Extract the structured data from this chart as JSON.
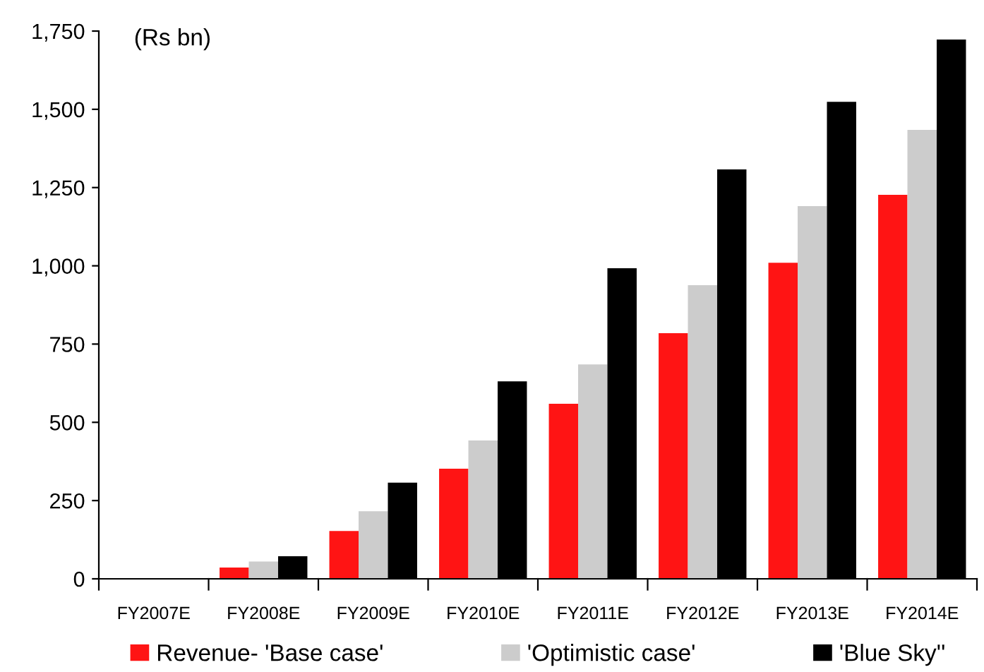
{
  "chart_data": {
    "type": "bar",
    "categories": [
      "FY2007E",
      "FY2008E",
      "FY2009E",
      "FY2010E",
      "FY2011E",
      "FY2012E",
      "FY2013E",
      "FY2014E"
    ],
    "series": [
      {
        "name": "Revenue- 'Base case'",
        "color": "#ff1414",
        "values": [
          0,
          36,
          153,
          352,
          559,
          785,
          1010,
          1227
        ]
      },
      {
        "name": "'Optimistic case'",
        "color": "#cccccc",
        "values": [
          0,
          55,
          216,
          442,
          685,
          938,
          1191,
          1434
        ]
      },
      {
        "name": "'Blue Sky''",
        "color": "#000000",
        "values": [
          0,
          72,
          307,
          631,
          992,
          1308,
          1524,
          1723
        ]
      }
    ],
    "ylim": [
      0,
      1750
    ],
    "yticks": [
      {
        "value": 0,
        "label": "0"
      },
      {
        "value": 250,
        "label": "250"
      },
      {
        "value": 500,
        "label": "500"
      },
      {
        "value": 750,
        "label": "750"
      },
      {
        "value": 1000,
        "label": "1,000"
      },
      {
        "value": 1250,
        "label": "1,250"
      },
      {
        "value": 1500,
        "label": "1,500"
      },
      {
        "value": 1750,
        "label": "1,750"
      }
    ],
    "annotations": [
      "(Rs bn)"
    ],
    "grid": false,
    "legend": "bottom"
  }
}
